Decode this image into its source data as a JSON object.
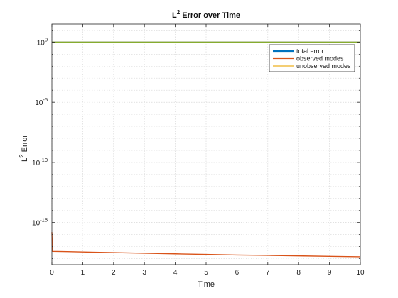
{
  "chart_data": {
    "type": "line",
    "title_base": "L",
    "title_sup": "2",
    "title_rest": " Error over Time",
    "xlabel": "Time",
    "ylabel_base": "L",
    "ylabel_sup": "2",
    "ylabel_rest": " Error",
    "xlim": [
      0,
      10
    ],
    "ylim_log10": [
      -18.5,
      1.5
    ],
    "xscale": "linear",
    "yscale": "log",
    "grid": true,
    "legend_position": "top-right",
    "x_ticks": [
      0,
      1,
      2,
      3,
      4,
      5,
      6,
      7,
      8,
      9,
      10
    ],
    "x_tick_labels": [
      "0",
      "1",
      "2",
      "3",
      "4",
      "5",
      "6",
      "7",
      "8",
      "9",
      "10"
    ],
    "y_ticks_log10": [
      0,
      -5,
      -10,
      -15
    ],
    "y_tick_labels": [
      {
        "base": "10",
        "exp": "0"
      },
      {
        "base": "10",
        "exp": "-5"
      },
      {
        "base": "10",
        "exp": "-10"
      },
      {
        "base": "10",
        "exp": "-15"
      }
    ],
    "series": [
      {
        "name": "total error",
        "color": "#0072BD",
        "x": [
          0,
          10
        ],
        "log10_y": [
          0.0,
          0.0
        ]
      },
      {
        "name": "observed modes",
        "color": "#D95319",
        "x": [
          0,
          0.02,
          0.5,
          1,
          2,
          3,
          4,
          5,
          6,
          7,
          8,
          9,
          10
        ],
        "log10_y": [
          -15.8,
          -17.4,
          -17.42,
          -17.45,
          -17.5,
          -17.55,
          -17.6,
          -17.65,
          -17.7,
          -17.73,
          -17.77,
          -17.81,
          -17.85
        ]
      },
      {
        "name": "unobserved modes",
        "color": "#EDB120",
        "x": [
          0,
          10
        ],
        "log10_y": [
          0.0,
          0.0
        ]
      }
    ],
    "overlay_line_color": "#77AC30"
  }
}
